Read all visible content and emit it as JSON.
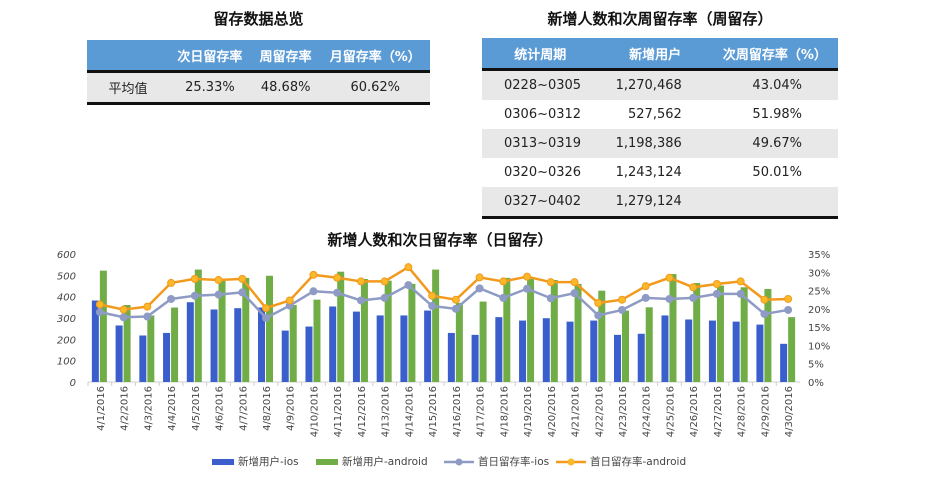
{
  "summary": {
    "title": "留存数据总览",
    "headers": [
      "",
      "次日留存率",
      "周留存率",
      "月留存率（%）"
    ],
    "row": [
      "平均值",
      "25.33%",
      "48.68%",
      "60.62%"
    ]
  },
  "weekly": {
    "title": "新增人数和次周留存率（周留存）",
    "headers": [
      "统计周期",
      "新增用户",
      "次周留存率（%）"
    ],
    "rows": [
      [
        "0228~0305",
        "1,270,468",
        "43.04%"
      ],
      [
        "0306~0312",
        "527,562",
        "51.98%"
      ],
      [
        "0313~0319",
        "1,198,386",
        "49.67%"
      ],
      [
        "0320~0326",
        "1,243,124",
        "50.01%"
      ],
      [
        "0327~0402",
        "1,279,124",
        ""
      ]
    ]
  },
  "chart_data": {
    "type": "bar+line",
    "title": "新增人数和次日留存率（日留存）",
    "categories": [
      "4/1/2016",
      "4/2/2016",
      "4/3/2016",
      "4/4/2016",
      "4/5/2016",
      "4/6/2016",
      "4/7/2016",
      "4/8/2016",
      "4/9/2016",
      "4/10/2016",
      "4/11/2016",
      "4/12/2016",
      "4/13/2016",
      "4/14/2016",
      "4/15/2016",
      "4/16/2016",
      "4/17/2016",
      "4/18/2016",
      "4/19/2016",
      "4/20/2016",
      "4/21/2016",
      "4/22/2016",
      "4/23/2016",
      "4/24/2016",
      "4/25/2016",
      "4/26/2016",
      "4/27/2016",
      "4/28/2016",
      "4/29/2016",
      "4/30/2016"
    ],
    "y_left": {
      "range": [
        0,
        600
      ],
      "ticks": [
        "0",
        "100",
        "200",
        "300",
        "400",
        "500",
        "600"
      ]
    },
    "y_right": {
      "range": [
        0,
        35
      ],
      "ticks": [
        "0%",
        "5%",
        "10%",
        "15%",
        "20%",
        "25%",
        "30%",
        "35%"
      ]
    },
    "series": [
      {
        "name": "新增用户-ios",
        "type": "bar",
        "axis": "left",
        "color": "#3a5fcd",
        "values": [
          382,
          265,
          218,
          230,
          374,
          340,
          346,
          349,
          241,
          260,
          354,
          330,
          312,
          312,
          335,
          230,
          221,
          304,
          288,
          299,
          283,
          288,
          221,
          226,
          312,
          293,
          288,
          283,
          269,
          179
        ]
      },
      {
        "name": "新增用户-android",
        "type": "bar",
        "axis": "left",
        "color": "#70ad47",
        "values": [
          522,
          361,
          312,
          349,
          527,
          475,
          488,
          498,
          361,
          386,
          517,
          483,
          475,
          460,
          527,
          371,
          377,
          488,
          483,
          478,
          460,
          428,
          335,
          350,
          506,
          464,
          452,
          444,
          436,
          304
        ]
      },
      {
        "name": "首日留存率-ios",
        "type": "line",
        "axis": "right",
        "color": "#8e9bc4",
        "values": [
          19.1,
          17.7,
          17.9,
          22.7,
          23.6,
          23.9,
          24.5,
          17.5,
          20.9,
          24.8,
          24.4,
          22.3,
          23.0,
          26.5,
          20.8,
          20.0,
          25.6,
          23.0,
          25.5,
          22.9,
          24.3,
          18.2,
          19.7,
          23.0,
          22.7,
          23.0,
          24.1,
          24.1,
          18.6,
          19.7
        ]
      },
      {
        "name": "首日留存率-android",
        "type": "line",
        "axis": "right",
        "color": "#f29a1e",
        "values": [
          21.2,
          19.8,
          20.6,
          27.1,
          28.2,
          27.9,
          28.2,
          20.2,
          22.3,
          29.3,
          28.5,
          27.5,
          27.5,
          31.4,
          23.6,
          22.5,
          28.6,
          27.5,
          28.8,
          27.3,
          27.3,
          21.6,
          22.5,
          26.2,
          28.5,
          25.9,
          26.8,
          27.5,
          22.5,
          22.7
        ]
      }
    ],
    "grid": false,
    "legend": "bottom"
  }
}
